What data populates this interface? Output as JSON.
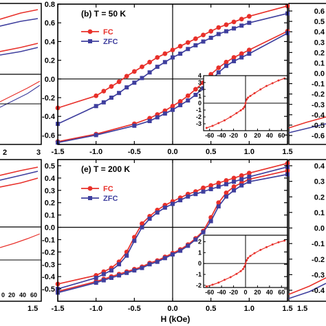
{
  "colors": {
    "fc": "#e8302a",
    "zfc": "#3f3f9e",
    "axes": "#000000"
  },
  "x_axis_label": "H (kOe)",
  "chart_data": [
    {
      "type": "line",
      "title": "(b) T = 50 K",
      "xlim": [
        -1.5,
        1.5
      ],
      "ylim": [
        -0.7,
        0.8
      ],
      "x_ticks": [
        "-1.5",
        "-1.0",
        "-0.5",
        "0.0",
        "0.5",
        "1.0",
        "1.5"
      ],
      "y_ticks": [
        "-0.6",
        "-0.4",
        "-0.2",
        "0.0",
        "0.2",
        "0.4",
        "0.6",
        "0.8"
      ],
      "legend": [
        "FC",
        "ZFC"
      ],
      "series": [
        {
          "name": "FC",
          "branch": "descending",
          "x": [
            1.5,
            1.0,
            0.9,
            0.8,
            0.7,
            0.6,
            0.5,
            0.4,
            0.3,
            0.2,
            0.1,
            0.0,
            -0.1,
            -0.2,
            -0.3,
            -0.4,
            -0.5,
            -0.6,
            -0.7,
            -0.8,
            -0.9,
            -1.0,
            -1.5
          ],
          "y": [
            0.78,
            0.67,
            0.64,
            0.61,
            0.58,
            0.55,
            0.51,
            0.47,
            0.43,
            0.39,
            0.35,
            0.31,
            0.27,
            0.23,
            0.18,
            0.13,
            0.08,
            0.03,
            -0.03,
            -0.08,
            -0.13,
            -0.18,
            -0.31
          ]
        },
        {
          "name": "FC",
          "branch": "ascending",
          "x": [
            -1.5,
            -1.0,
            -0.5,
            -0.3,
            -0.2,
            -0.1,
            0.0,
            0.1,
            0.2,
            0.3,
            0.4,
            0.5,
            0.6,
            0.7,
            0.8,
            0.9,
            1.0,
            1.5
          ],
          "y": [
            -0.67,
            -0.59,
            -0.48,
            -0.42,
            -0.38,
            -0.34,
            -0.29,
            -0.24,
            -0.18,
            -0.11,
            -0.04,
            0.05,
            0.12,
            0.18,
            0.23,
            0.27,
            0.31,
            0.51
          ]
        },
        {
          "name": "ZFC",
          "branch": "descending",
          "x": [
            1.5,
            1.0,
            0.9,
            0.8,
            0.7,
            0.6,
            0.5,
            0.4,
            0.3,
            0.2,
            0.1,
            0.0,
            -0.1,
            -0.2,
            -0.3,
            -0.4,
            -0.5,
            -0.6,
            -0.7,
            -0.8,
            -0.9,
            -1.0,
            -1.5
          ],
          "y": [
            0.7,
            0.6,
            0.57,
            0.54,
            0.51,
            0.48,
            0.44,
            0.4,
            0.36,
            0.32,
            0.27,
            0.23,
            0.18,
            0.13,
            0.07,
            0.01,
            -0.04,
            -0.09,
            -0.15,
            -0.2,
            -0.25,
            -0.29,
            -0.48
          ]
        },
        {
          "name": "ZFC",
          "branch": "ascending",
          "x": [
            -1.5,
            -1.0,
            -0.5,
            -0.3,
            -0.2,
            -0.1,
            0.0,
            0.1,
            0.2,
            0.3,
            0.4,
            0.5,
            0.6,
            0.7,
            0.8,
            0.9,
            1.0,
            1.5
          ],
          "y": [
            -0.68,
            -0.6,
            -0.5,
            -0.45,
            -0.41,
            -0.37,
            -0.33,
            -0.28,
            -0.23,
            -0.17,
            -0.1,
            -0.02,
            0.07,
            0.14,
            0.19,
            0.23,
            0.27,
            0.49
          ]
        }
      ],
      "inset": {
        "xlim": [
          -70,
          70
        ],
        "ylim": [
          -4,
          4
        ],
        "x_ticks": [
          "-60",
          "-40",
          "-20",
          "0",
          "20",
          "40",
          "60"
        ],
        "y_ticks": [
          "-3",
          "-2",
          "-1",
          "0",
          "1",
          "2",
          "3",
          "4"
        ],
        "series": [
          {
            "name": "FC",
            "x": [
              -65,
              -55,
              -45,
              -35,
              -25,
              -15,
              -8,
              -4,
              -2,
              0,
              2,
              4,
              8,
              15,
              25,
              35,
              45,
              55,
              65
            ],
            "y": [
              -3.6,
              -3.3,
              -2.9,
              -2.5,
              -2.0,
              -1.45,
              -1.05,
              -0.8,
              -0.55,
              0.0,
              0.55,
              0.8,
              1.05,
              1.45,
              2.0,
              2.5,
              2.9,
              3.3,
              3.6
            ]
          }
        ]
      }
    },
    {
      "type": "line",
      "title": "(e) T = 200 K",
      "xlim": [
        -1.5,
        1.5
      ],
      "ylim": [
        -0.6,
        0.55
      ],
      "x_ticks": [
        "-1.5",
        "-1.0",
        "-0.5",
        "0.0",
        "0.5",
        "1.0",
        "1.5"
      ],
      "y_ticks": [
        "-0.5",
        "-0.4",
        "-0.3",
        "-0.2",
        "-0.1",
        "0.0",
        "0.1",
        "0.2",
        "0.3",
        "0.4",
        "0.5"
      ],
      "legend": [
        "FC",
        "ZFC"
      ],
      "series": [
        {
          "name": "FC",
          "branch": "descending",
          "x": [
            1.5,
            1.0,
            0.9,
            0.8,
            0.7,
            0.6,
            0.5,
            0.4,
            0.3,
            0.2,
            0.1,
            0.0,
            -0.1,
            -0.2,
            -0.3,
            -0.4,
            -0.5,
            -0.6,
            -0.7,
            -0.8,
            -0.9,
            -1.0,
            -1.5
          ],
          "y": [
            0.52,
            0.44,
            0.42,
            0.4,
            0.38,
            0.36,
            0.34,
            0.32,
            0.29,
            0.27,
            0.24,
            0.21,
            0.18,
            0.14,
            0.09,
            0.03,
            -0.08,
            -0.2,
            -0.28,
            -0.33,
            -0.36,
            -0.39,
            -0.46
          ]
        },
        {
          "name": "FC",
          "branch": "ascending",
          "x": [
            -1.5,
            -1.0,
            -0.9,
            -0.8,
            -0.7,
            -0.6,
            -0.5,
            -0.4,
            -0.3,
            -0.2,
            -0.1,
            0.0,
            0.1,
            0.2,
            0.3,
            0.4,
            0.5,
            0.6,
            0.7,
            0.8,
            0.9,
            1.0,
            1.5
          ],
          "y": [
            -0.52,
            -0.44,
            -0.42,
            -0.4,
            -0.38,
            -0.36,
            -0.34,
            -0.32,
            -0.29,
            -0.27,
            -0.24,
            -0.21,
            -0.18,
            -0.14,
            -0.09,
            -0.03,
            0.08,
            0.2,
            0.28,
            0.33,
            0.36,
            0.39,
            0.46
          ]
        },
        {
          "name": "ZFC",
          "branch": "descending",
          "x": [
            1.5,
            1.0,
            0.9,
            0.8,
            0.7,
            0.6,
            0.5,
            0.4,
            0.3,
            0.2,
            0.1,
            0.0,
            -0.1,
            -0.2,
            -0.3,
            -0.4,
            -0.5,
            -0.6,
            -0.7,
            -0.8,
            -0.9,
            -1.0,
            -1.5
          ],
          "y": [
            0.49,
            0.41,
            0.39,
            0.37,
            0.35,
            0.33,
            0.31,
            0.29,
            0.27,
            0.25,
            0.22,
            0.19,
            0.16,
            0.12,
            0.07,
            0.0,
            -0.11,
            -0.23,
            -0.3,
            -0.35,
            -0.38,
            -0.41,
            -0.5
          ]
        },
        {
          "name": "ZFC",
          "branch": "ascending",
          "x": [
            -1.5,
            -1.0,
            -0.9,
            -0.8,
            -0.7,
            -0.6,
            -0.5,
            -0.4,
            -0.3,
            -0.2,
            -0.1,
            0.0,
            0.1,
            0.2,
            0.3,
            0.4,
            0.5,
            0.6,
            0.7,
            0.8,
            0.9,
            1.0,
            1.5
          ],
          "y": [
            -0.53,
            -0.45,
            -0.43,
            -0.41,
            -0.39,
            -0.37,
            -0.35,
            -0.33,
            -0.3,
            -0.28,
            -0.25,
            -0.22,
            -0.19,
            -0.15,
            -0.1,
            -0.04,
            0.05,
            0.17,
            0.25,
            0.3,
            0.34,
            0.37,
            0.43
          ]
        }
      ],
      "inset": {
        "xlim": [
          -70,
          70
        ],
        "ylim": [
          -2.2,
          2.6
        ],
        "x_ticks": [
          "-60",
          "-40",
          "-20",
          "0",
          "20",
          "40",
          "60"
        ],
        "y_ticks": [
          "-2",
          "-1",
          "0",
          "1",
          "2"
        ],
        "series": [
          {
            "name": "FC",
            "x": [
              -65,
              -55,
              -45,
              -35,
              -25,
              -15,
              -8,
              -4,
              -2,
              0,
              2,
              4,
              8,
              15,
              25,
              35,
              45,
              55,
              65
            ],
            "y": [
              -2.1,
              -1.95,
              -1.75,
              -1.5,
              -1.25,
              -0.95,
              -0.7,
              -0.5,
              -0.3,
              0.0,
              0.3,
              0.5,
              0.7,
              0.95,
              1.25,
              1.5,
              1.75,
              1.95,
              2.1
            ]
          }
        ]
      }
    }
  ],
  "side_fragments": {
    "left_bottom_ticks": [
      "2",
      "3"
    ],
    "left_lower_ticks": [
      "0",
      "20",
      "40",
      "60"
    ],
    "left_lower2_ticks": [
      "0",
      "20",
      "40",
      "60"
    ],
    "left_xlim_end": "1.5",
    "right_top_ticks": [
      "0.6",
      "0.5",
      "0.4",
      "0.3",
      "0.2",
      "0.1",
      "0.0",
      "-0.1",
      "-0.2",
      "-0.3",
      "-0.4",
      "-0.5",
      "-0.6"
    ],
    "right_bottom_ticks": [
      "0.4",
      "0.3",
      "0.2",
      "0.1",
      "0.0",
      "-0.1",
      "-0.2",
      "-0.3",
      "-0.4"
    ],
    "right_bottom_x": "1.5"
  }
}
